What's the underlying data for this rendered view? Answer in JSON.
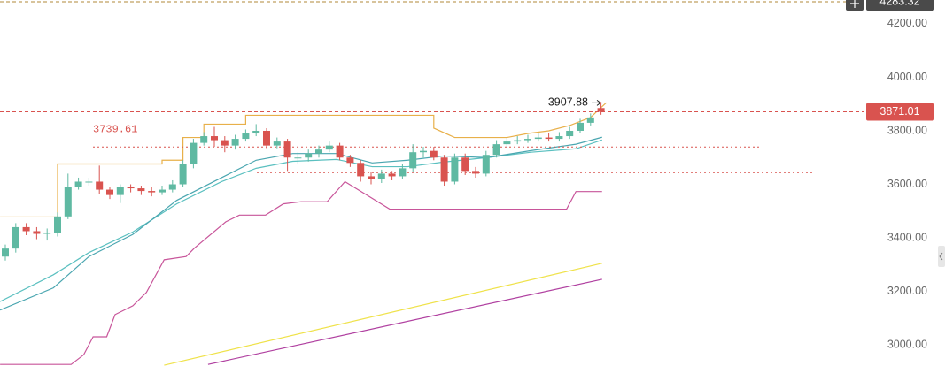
{
  "chart_data": {
    "type": "candlestick",
    "up_color": "#5fb9a2",
    "down_color": "#d9534f",
    "ylim": [
      2921,
      4289
    ],
    "yticks": [
      {
        "value": 3000,
        "label": "3000.00"
      },
      {
        "value": 3200,
        "label": "3200.00"
      },
      {
        "value": 3400,
        "label": "3400.00"
      },
      {
        "value": 3600,
        "label": "3600.00"
      },
      {
        "value": 3800,
        "label": "3800.00"
      },
      {
        "value": 4000,
        "label": "4000.00"
      },
      {
        "value": 4200,
        "label": "4200.00"
      }
    ],
    "open": [
      3330,
      3360,
      3440,
      3425,
      3415,
      3420,
      3480,
      3590,
      3610,
      3610,
      3580,
      3560,
      3590,
      3585,
      3575,
      3570,
      3580,
      3600,
      3675,
      3755,
      3780,
      3765,
      3745,
      3770,
      3790,
      3800,
      3745,
      3760,
      3700,
      3700,
      3715,
      3730,
      3745,
      3700,
      3680,
      3630,
      3620,
      3640,
      3630,
      3660,
      3720,
      3725,
      3700,
      3610,
      3700,
      3650,
      3640,
      3710,
      3750,
      3760,
      3765,
      3770,
      3775,
      3770,
      3780,
      3800,
      3830,
      3885
    ],
    "high": [
      3375,
      3455,
      3455,
      3440,
      3435,
      3495,
      3640,
      3625,
      3625,
      3670,
      3590,
      3600,
      3600,
      3595,
      3590,
      3595,
      3615,
      3690,
      3770,
      3795,
      3815,
      3780,
      3785,
      3805,
      3825,
      3810,
      3775,
      3770,
      3720,
      3730,
      3745,
      3760,
      3755,
      3710,
      3690,
      3645,
      3655,
      3650,
      3675,
      3750,
      3740,
      3740,
      3710,
      3715,
      3715,
      3665,
      3725,
      3765,
      3775,
      3780,
      3785,
      3790,
      3790,
      3795,
      3815,
      3845,
      3865,
      3907.88
    ],
    "low": [
      3315,
      3345,
      3410,
      3395,
      3390,
      3405,
      3470,
      3580,
      3595,
      3565,
      3545,
      3530,
      3570,
      3560,
      3555,
      3560,
      3570,
      3590,
      3660,
      3745,
      3740,
      3720,
      3730,
      3760,
      3780,
      3735,
      3735,
      3650,
      3675,
      3685,
      3700,
      3720,
      3690,
      3665,
      3610,
      3600,
      3605,
      3615,
      3620,
      3645,
      3700,
      3690,
      3595,
      3600,
      3635,
      3625,
      3630,
      3700,
      3740,
      3750,
      3755,
      3760,
      3760,
      3760,
      3770,
      3790,
      3820,
      3860
    ],
    "close": [
      3360,
      3440,
      3425,
      3415,
      3420,
      3480,
      3590,
      3610,
      3610,
      3580,
      3560,
      3590,
      3585,
      3575,
      3570,
      3580,
      3600,
      3675,
      3755,
      3780,
      3765,
      3745,
      3770,
      3790,
      3800,
      3745,
      3760,
      3700,
      3700,
      3715,
      3730,
      3745,
      3700,
      3680,
      3630,
      3620,
      3640,
      3630,
      3660,
      3720,
      3725,
      3700,
      3610,
      3700,
      3650,
      3640,
      3710,
      3750,
      3760,
      3765,
      3770,
      3775,
      3770,
      3780,
      3800,
      3830,
      3850,
      3871.01
    ],
    "overlays": [
      {
        "color": "#e8b04a",
        "x": [
          -0.5,
          5,
          5,
          15,
          15,
          17,
          17,
          19,
          19,
          23,
          23,
          41,
          41,
          43,
          48,
          50,
          52,
          54,
          56,
          57.5
        ],
        "values": [
          3478,
          3478,
          3676,
          3676,
          3690,
          3690,
          3775,
          3775,
          3825,
          3825,
          3858,
          3858,
          3810,
          3775,
          3775,
          3790,
          3800,
          3820,
          3850,
          3905
        ]
      },
      {
        "color": "#c8559a",
        "x": [
          -0.5,
          6.3,
          7.5,
          8.4,
          9.7,
          10.5,
          12.2,
          13.5,
          15.2,
          17.3,
          18.1,
          21.1,
          22.4,
          24.9,
          26.6,
          28.3,
          30.8,
          32.5,
          36.8,
          53.7,
          54.6,
          57.1
        ],
        "values": [
          2927,
          2927,
          2963,
          3030,
          3030,
          3113,
          3146,
          3196,
          3318,
          3330,
          3362,
          3460,
          3485,
          3485,
          3527,
          3535,
          3535,
          3610,
          3507,
          3507,
          3573,
          3573
        ]
      },
      {
        "color": "#5bc0c0",
        "x": [
          -0.5,
          4.6,
          8,
          12.2,
          16.4,
          20.7,
          24,
          27.5,
          31.7,
          35.1,
          38.5,
          41.9,
          46.1,
          50.3,
          54.6,
          57.1
        ],
        "values": [
          3162,
          3262,
          3345,
          3422,
          3527,
          3610,
          3660,
          3686,
          3693,
          3666,
          3666,
          3683,
          3700,
          3720,
          3733,
          3766
        ]
      },
      {
        "color": "#4aa6b0",
        "x": [
          -0.5,
          4.6,
          8,
          12.2,
          16.4,
          20.7,
          24,
          27.5,
          31.7,
          35.1,
          38.5,
          41.9,
          46.1,
          50.3,
          54.6,
          57.1
        ],
        "values": [
          3130,
          3213,
          3330,
          3413,
          3540,
          3625,
          3690,
          3715,
          3715,
          3680,
          3690,
          3706,
          3700,
          3726,
          3750,
          3776
        ]
      },
      {
        "color": "#efe24a",
        "x": [
          15.2,
          57.1
        ],
        "values": [
          2924,
          3305
        ]
      },
      {
        "color": "#b040a0",
        "x": [
          19.4,
          57.1
        ],
        "values": [
          2927,
          3245
        ]
      }
    ],
    "levels": [
      {
        "value": 3739.61,
        "label": "3739.61"
      },
      {
        "value": 3644
      }
    ],
    "price_tags": [
      {
        "value": 4283.32,
        "label": "4283.32",
        "color": "#4a4a4a"
      },
      {
        "value": 3871.01,
        "label": "3871.01",
        "color": "#d9534f"
      }
    ],
    "annotations": [
      {
        "value": 3907.88,
        "label": "3907.88"
      }
    ]
  }
}
